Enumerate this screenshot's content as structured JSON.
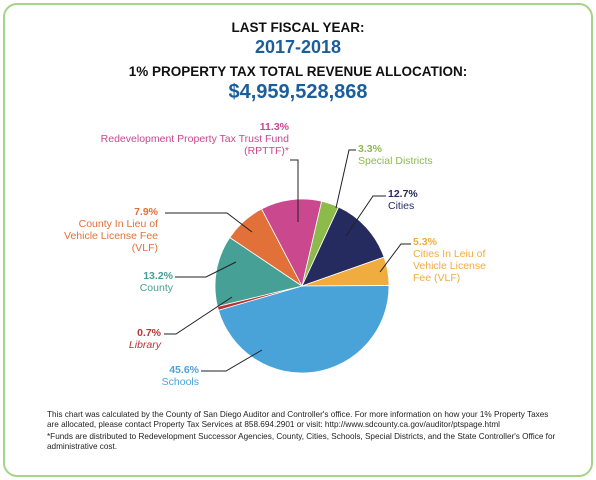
{
  "chart_data": {
    "type": "pie",
    "title": "LAST FISCAL YEAR:",
    "subtitle": "2017-2018",
    "total_label": "1% PROPERTY TAX TOTAL REVENUE ALLOCATION:",
    "total": "$4,959,528,868",
    "categories": [
      "Special Districts",
      "Cities",
      "Cities In Leiu of Vehicle License Fee (VLF)",
      "Schools",
      "Library",
      "County",
      "County In Lieu of Vehicle License Fee (VLF)",
      "Redevelopment Property Tax Trust Fund (RPTTF)*"
    ],
    "values": [
      3.3,
      12.7,
      5.3,
      45.6,
      0.7,
      13.2,
      7.9,
      11.3
    ],
    "value_labels": [
      "3.3%",
      "12.7%",
      "5.3%",
      "45.6%",
      "0.7%",
      "13.2%",
      "7.9%",
      "11.3%"
    ],
    "colors": [
      "#8cba4b",
      "#262b5f",
      "#f0ac3e",
      "#4aa3d8",
      "#b93236",
      "#46a096",
      "#e27039",
      "#c9488e"
    ],
    "notes": [
      "This chart was calculated by the County of San Diego Auditor and Controller's office. For more information on how your 1% Property Taxes are allocated, please contact Property Tax Services at 858.694.2901 or visit: http://www.sdcounty.ca.gov/auditor/ptspage.html",
      "*Funds are distributed to Redevelopment Successor Agencies, County, Cities, Schools, Special Districts, and the State Controller's Office for administrative cost."
    ]
  }
}
